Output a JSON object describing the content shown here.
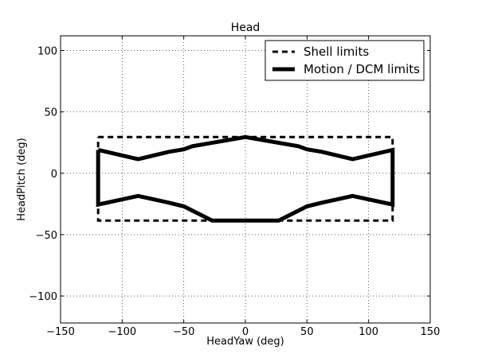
{
  "chart_data": {
    "type": "line",
    "title": "Head",
    "xlabel": "HeadYaw (deg)",
    "ylabel": "HeadPitch (deg)",
    "xlim": [
      -150,
      150
    ],
    "ylim": [
      -122,
      112
    ],
    "xticks": [
      -150,
      -100,
      -50,
      0,
      50,
      100,
      150
    ],
    "xtick_labels": [
      "−150",
      "−100",
      "−50",
      "0",
      "50",
      "100",
      "150"
    ],
    "yticks": [
      -100,
      -50,
      0,
      50,
      100
    ],
    "ytick_labels": [
      "−100",
      "−50",
      "0",
      "50",
      "100"
    ],
    "grid": true,
    "legend_position": "top-right",
    "series": [
      {
        "name": "Shell limits",
        "style": "dashed",
        "color": "#000000",
        "x": [
          -119.5,
          119.5,
          119.5,
          -119.5,
          -119.5
        ],
        "y": [
          29.5,
          29.5,
          -38.5,
          -38.5,
          29.5
        ]
      },
      {
        "name": "Motion / DCM limits",
        "style": "solid",
        "color": "#000000",
        "x": [
          -119.5,
          -87,
          -62,
          -50,
          -43,
          0,
          43,
          50,
          62,
          87,
          119.5,
          119.5,
          87,
          62,
          50,
          27,
          -27,
          -50,
          -62,
          -87,
          -119.5,
          -119.5
        ],
        "y": [
          19,
          11.5,
          17.5,
          19.5,
          22,
          29.5,
          22,
          19.5,
          17.5,
          11.5,
          19,
          -25.5,
          -18.5,
          -24,
          -27,
          -38.5,
          -38.5,
          -27,
          -24,
          -18.5,
          -25.5,
          19
        ]
      }
    ]
  }
}
